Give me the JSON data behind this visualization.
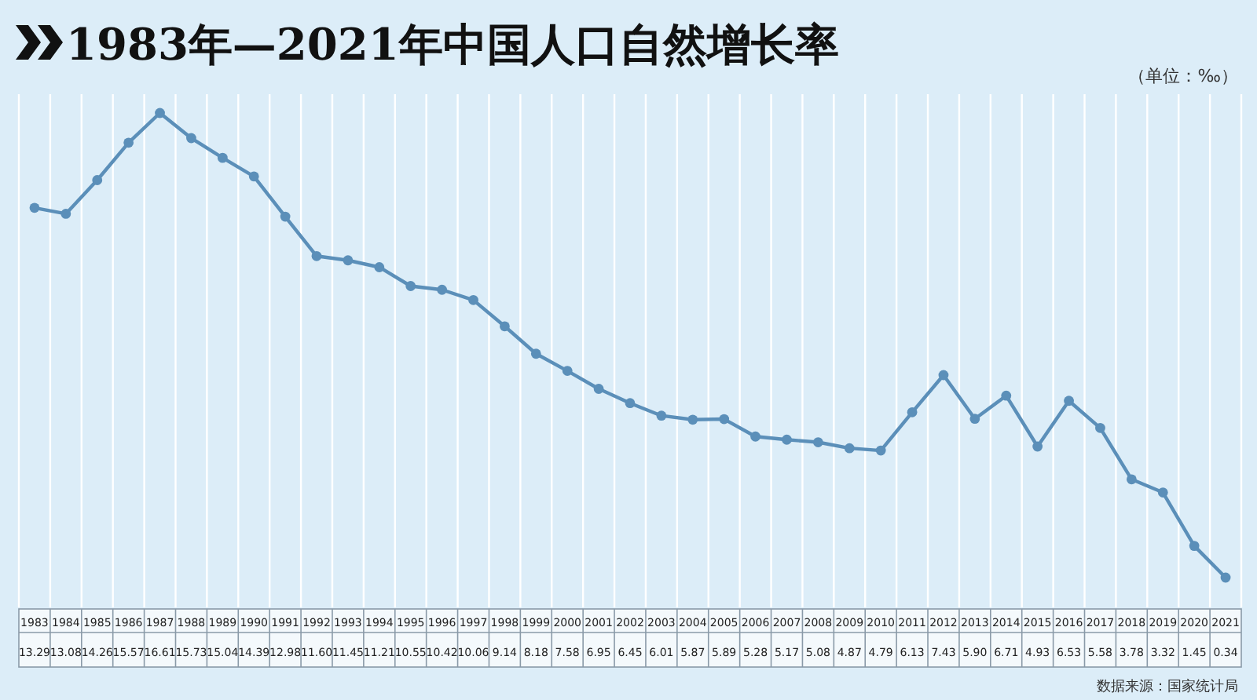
{
  "chart_data": {
    "type": "line",
    "title": "1983年—2021年中国人口自然增长率",
    "ylabel": "（单位：‰）",
    "annotations": [
      "数据来源：国家统计局"
    ],
    "categories": [
      "1983",
      "1984",
      "1985",
      "1986",
      "1987",
      "1988",
      "1989",
      "1990",
      "1991",
      "1992",
      "1993",
      "1994",
      "1995",
      "1996",
      "1997",
      "1998",
      "1999",
      "2000",
      "2001",
      "2002",
      "2003",
      "2004",
      "2005",
      "2006",
      "2007",
      "2008",
      "2009",
      "2010",
      "2011",
      "2012",
      "2013",
      "2014",
      "2015",
      "2016",
      "2017",
      "2018",
      "2019",
      "2020",
      "2021"
    ],
    "series": [
      {
        "color": "#5b8fb9",
        "values": [
          13.29,
          13.08,
          14.26,
          15.57,
          16.61,
          15.73,
          15.04,
          14.39,
          12.98,
          11.6,
          11.45,
          11.21,
          10.55,
          10.42,
          10.06,
          9.14,
          8.18,
          7.58,
          6.95,
          6.45,
          6.01,
          5.87,
          5.89,
          5.28,
          5.17,
          5.08,
          4.87,
          4.79,
          6.13,
          7.43,
          5.9,
          6.71,
          4.93,
          6.53,
          5.58,
          3.78,
          3.32,
          1.45,
          0.34
        ],
        "value_labels": [
          "13.29",
          "13.08",
          "14.26",
          "15.57",
          "16.61",
          "15.73",
          "15.04",
          "14.39",
          "12.98",
          "11.60",
          "11.45",
          "11.21",
          "10.55",
          "10.42",
          "10.06",
          "9.14",
          "8.18",
          "7.58",
          "6.95",
          "6.45",
          "6.01",
          "5.87",
          "5.89",
          "5.28",
          "5.17",
          "5.08",
          "4.87",
          "4.79",
          "6.13",
          "7.43",
          "5.90",
          "6.71",
          "4.93",
          "6.53",
          "5.58",
          "3.78",
          "3.32",
          "1.45",
          "0.34"
        ]
      }
    ],
    "grid": "x",
    "marker": "circle",
    "line_style": "solid"
  }
}
